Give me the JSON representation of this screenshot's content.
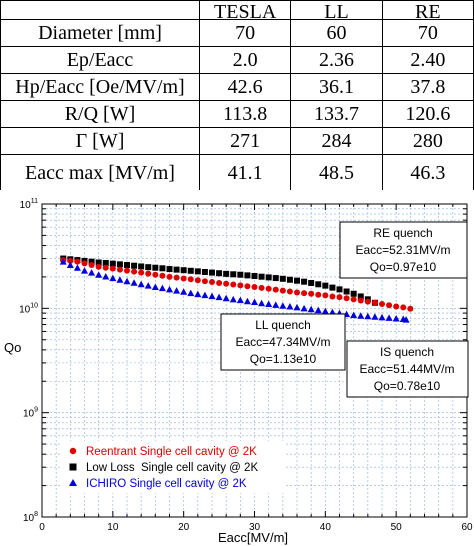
{
  "table": {
    "headers": [
      "",
      "TESLA",
      "LL",
      "RE"
    ],
    "rows": [
      {
        "label": "Diameter [mm]",
        "values": [
          "70",
          "60",
          "70"
        ]
      },
      {
        "label": "Ep/Eacc",
        "values": [
          "2.0",
          "2.36",
          "2.40"
        ]
      },
      {
        "label": "Hp/Eacc [Oe/MV/m]",
        "values": [
          "42.6",
          "36.1",
          "37.8"
        ]
      },
      {
        "label": "R/Q [W]",
        "values": [
          "113.8",
          "133.7",
          "120.6"
        ]
      },
      {
        "label": "Γ [W]",
        "values": [
          "271",
          "284",
          "280"
        ]
      },
      {
        "label": "Eacc max [MV/m]",
        "values": [
          "41.1",
          "48.5",
          "46.3"
        ]
      }
    ]
  },
  "chart_data": {
    "type": "scatter",
    "xlabel": "Eacc[MV/m]",
    "ylabel": "Qo",
    "xlim": [
      0,
      60
    ],
    "ylim": [
      100000000.0,
      100000000000.0
    ],
    "yscale": "log",
    "grid": true,
    "x_ticks": [
      "0",
      "10",
      "20",
      "30",
      "40",
      "50",
      "60"
    ],
    "y_ticks": [
      {
        "base": "10",
        "exp": "8",
        "value": 100000000.0
      },
      {
        "base": "10",
        "exp": "9",
        "value": 1000000000.0
      },
      {
        "base": "10",
        "exp": "10",
        "value": 10000000000.0
      },
      {
        "base": "10",
        "exp": "11",
        "value": 100000000000.0
      }
    ],
    "legend_position": "bottom-left",
    "series": [
      {
        "name": "Reentrant Single cell cavity @ 2K",
        "color": "#e00000",
        "marker": "circle",
        "x": [
          3,
          4,
          5,
          6,
          7,
          8,
          9,
          10,
          11,
          12,
          13,
          14,
          15,
          16,
          17,
          18,
          19,
          20,
          21,
          22,
          23,
          24,
          25,
          26,
          27,
          28,
          29,
          30,
          31,
          32,
          33,
          34,
          35,
          36,
          37,
          38,
          39,
          40,
          41,
          42,
          43,
          44,
          45,
          46,
          47,
          48,
          49,
          50,
          51,
          52
        ],
        "y": [
          29000000000.0,
          28500000000.0,
          28000000000.0,
          27000000000.0,
          26000000000.0,
          25000000000.0,
          24500000000.0,
          24000000000.0,
          23500000000.0,
          23000000000.0,
          22500000000.0,
          22000000000.0,
          21500000000.0,
          21000000000.0,
          20500000000.0,
          20000000000.0,
          19700000000.0,
          19300000000.0,
          19000000000.0,
          18600000000.0,
          18200000000.0,
          17900000000.0,
          17500000000.0,
          17200000000.0,
          16900000000.0,
          16600000000.0,
          16300000000.0,
          16000000000.0,
          15700000000.0,
          15400000000.0,
          15100000000.0,
          14800000000.0,
          14500000000.0,
          14200000000.0,
          14000000000.0,
          13800000000.0,
          13500000000.0,
          13300000000.0,
          13000000000.0,
          12800000000.0,
          12500000000.0,
          12200000000.0,
          11900000000.0,
          11600000000.0,
          11300000000.0,
          11000000000.0,
          10700000000.0,
          10400000000.0,
          10200000000.0,
          9900000000.0
        ]
      },
      {
        "name": "Low Loss  Single cell cavity @ 2K",
        "color": "#000000",
        "marker": "square",
        "x": [
          3,
          4,
          5,
          6,
          7,
          8,
          9,
          10,
          11,
          12,
          13,
          14,
          15,
          16,
          17,
          18,
          19,
          20,
          21,
          22,
          23,
          24,
          25,
          26,
          27,
          28,
          29,
          30,
          31,
          32,
          33,
          34,
          35,
          36,
          37,
          38,
          39,
          40,
          41,
          42,
          43,
          44,
          45,
          46,
          47
        ],
        "y": [
          30000000000.0,
          29500000000.0,
          29000000000.0,
          28500000000.0,
          28000000000.0,
          27500000000.0,
          27200000000.0,
          26800000000.0,
          26400000000.0,
          26000000000.0,
          25600000000.0,
          25200000000.0,
          24800000000.0,
          24500000000.0,
          24200000000.0,
          23800000000.0,
          23500000000.0,
          23200000000.0,
          22900000000.0,
          22600000000.0,
          22300000000.0,
          22000000000.0,
          21700000000.0,
          21400000000.0,
          21200000000.0,
          21000000000.0,
          20700000000.0,
          20400000000.0,
          20100000000.0,
          19800000000.0,
          19500000000.0,
          19200000000.0,
          18800000000.0,
          18400000000.0,
          18000000000.0,
          17500000000.0,
          17000000000.0,
          16500000000.0,
          15800000000.0,
          15200000000.0,
          14500000000.0,
          13800000000.0,
          13000000000.0,
          12200000000.0,
          11300000000.0
        ]
      },
      {
        "name": "ICHIRO Single cell cavity @ 2K",
        "color": "#0000e0",
        "marker": "triangle",
        "x": [
          3,
          4,
          5,
          6,
          7,
          8,
          9,
          10,
          11,
          12,
          13,
          14,
          15,
          16,
          17,
          18,
          19,
          20,
          21,
          22,
          23,
          24,
          25,
          26,
          27,
          28,
          29,
          30,
          31,
          32,
          33,
          34,
          35,
          36,
          37,
          38,
          39,
          40,
          41,
          42,
          43,
          44,
          45,
          46,
          47,
          48,
          49,
          50,
          51,
          51.4
        ],
        "y": [
          28000000000.0,
          26000000000.0,
          24500000000.0,
          23000000000.0,
          22000000000.0,
          21000000000.0,
          20200000000.0,
          19500000000.0,
          18800000000.0,
          18200000000.0,
          17600000000.0,
          17000000000.0,
          16500000000.0,
          16000000000.0,
          15600000000.0,
          15200000000.0,
          14800000000.0,
          14400000000.0,
          14000000000.0,
          13700000000.0,
          13400000000.0,
          13100000000.0,
          12800000000.0,
          12500000000.0,
          12200000000.0,
          12000000000.0,
          11700000000.0,
          11500000000.0,
          11200000000.0,
          11000000000.0,
          10800000000.0,
          10600000000.0,
          10400000000.0,
          10200000000.0,
          10000000000.0,
          9800000000.0,
          9600000000.0,
          9400000000.0,
          9200000000.0,
          9000000000.0,
          8800000000.0,
          8600000000.0,
          8500000000.0,
          8400000000.0,
          8300000000.0,
          8200000000.0,
          8100000000.0,
          8000000000.0,
          7900000000.0,
          7800000000.0
        ]
      }
    ],
    "annotations": [
      {
        "lines": [
          "RE quench",
          "Eacc=52.31MV/m",
          "Qo=0.97e10"
        ]
      },
      {
        "lines": [
          "LL quench",
          "Eacc=47.34MV/m",
          "Qo=1.13e10"
        ]
      },
      {
        "lines": [
          "IS quench",
          "Eacc=51.44MV/m",
          "Qo=0.78e10"
        ]
      }
    ]
  }
}
